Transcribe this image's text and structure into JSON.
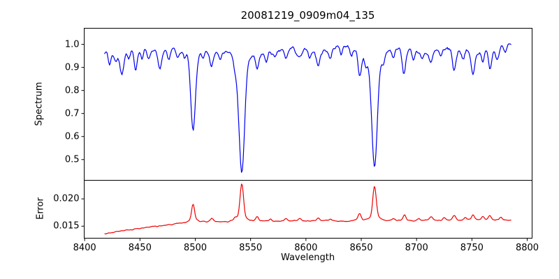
{
  "title": "20081219_0909m04_135",
  "xlabel": "Wavelength",
  "frame_color": "#000000",
  "background_color": "#ffffff",
  "xticks": [
    8400,
    8450,
    8500,
    8550,
    8600,
    8650,
    8700,
    8750,
    8800
  ],
  "xtick_labels": [
    "8400",
    "8450",
    "8500",
    "8550",
    "8600",
    "8650",
    "8700",
    "8750",
    "8800"
  ],
  "chart_data": [
    {
      "type": "line",
      "panel": "spectrum",
      "ylabel": "Spectrum",
      "line_color": "#0000ee",
      "xlim": [
        8399.6,
        8804.4
      ],
      "ylim": [
        0.41,
        1.07
      ],
      "yticks": [
        0.5,
        0.6,
        0.7,
        0.8,
        0.9,
        1.0
      ],
      "ytick_labels": [
        "0.5",
        "0.6",
        "0.7",
        "0.8",
        "0.9",
        "1.0"
      ],
      "x_start": 8418,
      "x_end": 8786,
      "x_step": 0.75,
      "continuum": 0.985,
      "continuum_wiggles": [
        {
          "amp": 0.009,
          "period": 47,
          "phase": 1.3
        },
        {
          "amp": 0.006,
          "period": 150,
          "phase": 3.9
        }
      ],
      "noise_amplitude": 0.013,
      "noise_seed": 7,
      "absorption_lines": [
        {
          "c": 8422.5,
          "d": 0.055,
          "w": 1.2
        },
        {
          "c": 8428.0,
          "d": 0.035,
          "w": 1.2
        },
        {
          "c": 8433.5,
          "d": 0.105,
          "w": 1.6
        },
        {
          "c": 8440.0,
          "d": 0.04,
          "w": 1.2
        },
        {
          "c": 8446.0,
          "d": 0.095,
          "w": 1.4
        },
        {
          "c": 8452.0,
          "d": 0.05,
          "w": 1.2
        },
        {
          "c": 8458.0,
          "d": 0.045,
          "w": 1.3
        },
        {
          "c": 8468.0,
          "d": 0.085,
          "w": 1.8
        },
        {
          "c": 8476.0,
          "d": 0.04,
          "w": 1.3
        },
        {
          "c": 8484.0,
          "d": 0.045,
          "w": 1.3
        },
        {
          "c": 8490.0,
          "d": 0.035,
          "w": 1.2
        },
        {
          "c": 8498.0,
          "d": 0.375,
          "w": 2.1
        },
        {
          "c": 8507.0,
          "d": 0.04,
          "w": 1.3
        },
        {
          "c": 8514.5,
          "d": 0.075,
          "w": 1.6
        },
        {
          "c": 8523.0,
          "d": 0.035,
          "w": 1.2
        },
        {
          "c": 8536.0,
          "d": 0.045,
          "w": 1.3
        },
        {
          "c": 8542.0,
          "d": 0.548,
          "w": 2.5
        },
        {
          "c": 8556.0,
          "d": 0.075,
          "w": 1.6
        },
        {
          "c": 8564.0,
          "d": 0.04,
          "w": 1.3
        },
        {
          "c": 8572.0,
          "d": 0.035,
          "w": 1.2
        },
        {
          "c": 8582.0,
          "d": 0.045,
          "w": 1.4
        },
        {
          "c": 8594.0,
          "d": 0.05,
          "w": 2.2
        },
        {
          "c": 8603.0,
          "d": 0.035,
          "w": 1.3
        },
        {
          "c": 8611.0,
          "d": 0.07,
          "w": 1.5
        },
        {
          "c": 8622.0,
          "d": 0.045,
          "w": 1.3
        },
        {
          "c": 8632.0,
          "d": 0.035,
          "w": 1.2
        },
        {
          "c": 8641.0,
          "d": 0.04,
          "w": 1.3
        },
        {
          "c": 8648.5,
          "d": 0.115,
          "w": 1.5
        },
        {
          "c": 8654.0,
          "d": 0.04,
          "w": 1.2
        },
        {
          "c": 8662.0,
          "d": 0.52,
          "w": 2.4
        },
        {
          "c": 8670.0,
          "d": 0.035,
          "w": 1.2
        },
        {
          "c": 8679.0,
          "d": 0.045,
          "w": 1.3
        },
        {
          "c": 8688.5,
          "d": 0.12,
          "w": 1.5
        },
        {
          "c": 8697.0,
          "d": 0.04,
          "w": 1.2
        },
        {
          "c": 8705.0,
          "d": 0.035,
          "w": 1.2
        },
        {
          "c": 8713.0,
          "d": 0.055,
          "w": 1.4
        },
        {
          "c": 8722.0,
          "d": 0.04,
          "w": 1.2
        },
        {
          "c": 8734.0,
          "d": 0.1,
          "w": 1.5
        },
        {
          "c": 8742.0,
          "d": 0.04,
          "w": 1.2
        },
        {
          "c": 8751.0,
          "d": 0.11,
          "w": 1.5
        },
        {
          "c": 8760.0,
          "d": 0.045,
          "w": 1.2
        },
        {
          "c": 8766.5,
          "d": 0.085,
          "w": 1.4
        },
        {
          "c": 8773.0,
          "d": 0.055,
          "w": 1.3
        },
        {
          "c": 8780.0,
          "d": 0.04,
          "w": 1.2
        }
      ]
    },
    {
      "type": "line",
      "panel": "error",
      "ylabel": "Error",
      "line_color": "#ee0000",
      "xlim": [
        8399.6,
        8804.4
      ],
      "ylim": [
        0.0128,
        0.0234
      ],
      "yticks": [
        0.015,
        0.02
      ],
      "ytick_labels": [
        "0.015",
        "0.020"
      ],
      "x_start": 8418,
      "x_end": 8786,
      "x_step": 0.75,
      "baseline": {
        "start_x": 8418,
        "start_y": 0.0136,
        "knee_x": 8500,
        "knee_y": 0.0158,
        "end_x": 8786,
        "end_y": 0.0161,
        "rise_power": 0.85
      },
      "noise_amplitude": 0.00014,
      "noise_seed": 3,
      "peaks": [
        {
          "c": 8498.0,
          "h": 0.0033,
          "w": 1.3
        },
        {
          "c": 8515.0,
          "h": 0.0006,
          "w": 1.2
        },
        {
          "c": 8536.0,
          "h": 0.0005,
          "w": 1.2
        },
        {
          "c": 8542.0,
          "h": 0.0069,
          "w": 1.5
        },
        {
          "c": 8556.0,
          "h": 0.0009,
          "w": 1.3
        },
        {
          "c": 8568.0,
          "h": 0.0004,
          "w": 1.2
        },
        {
          "c": 8582.0,
          "h": 0.0005,
          "w": 1.2
        },
        {
          "c": 8594.0,
          "h": 0.0005,
          "w": 1.5
        },
        {
          "c": 8611.0,
          "h": 0.0006,
          "w": 1.3
        },
        {
          "c": 8622.0,
          "h": 0.0004,
          "w": 1.2
        },
        {
          "c": 8648.5,
          "h": 0.0013,
          "w": 1.3
        },
        {
          "c": 8662.0,
          "h": 0.0063,
          "w": 1.5
        },
        {
          "c": 8679.0,
          "h": 0.0005,
          "w": 1.2
        },
        {
          "c": 8689.0,
          "h": 0.0011,
          "w": 1.3
        },
        {
          "c": 8702.0,
          "h": 0.0004,
          "w": 1.2
        },
        {
          "c": 8713.0,
          "h": 0.0007,
          "w": 1.3
        },
        {
          "c": 8725.0,
          "h": 0.0005,
          "w": 1.2
        },
        {
          "c": 8734.0,
          "h": 0.0009,
          "w": 1.3
        },
        {
          "c": 8744.0,
          "h": 0.0005,
          "w": 1.2
        },
        {
          "c": 8751.0,
          "h": 0.001,
          "w": 1.3
        },
        {
          "c": 8760.0,
          "h": 0.0006,
          "w": 1.2
        },
        {
          "c": 8766.0,
          "h": 0.0008,
          "w": 1.3
        },
        {
          "c": 8776.0,
          "h": 0.0005,
          "w": 1.2
        }
      ]
    }
  ]
}
